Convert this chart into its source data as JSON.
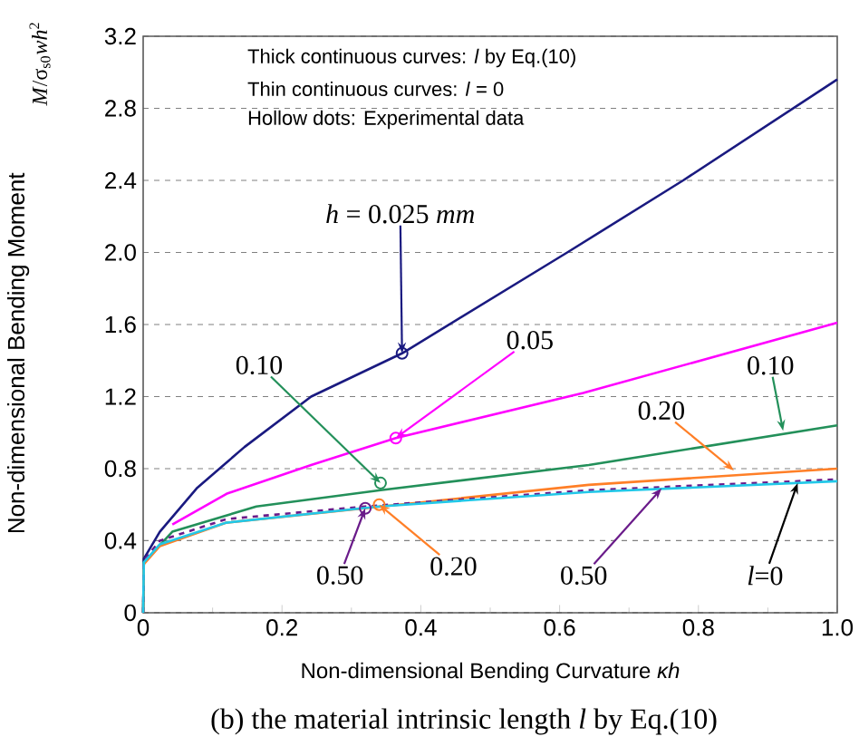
{
  "chart_data": {
    "type": "line",
    "title": "(b) the material intrinsic length *l* by Eq.(10)",
    "xlabel": "Non-dimensional Bending Curvature *κh*",
    "ylabel": "Non-dimensional Bending Moment",
    "xlim": [
      0,
      1
    ],
    "ylim": [
      0,
      3.2
    ],
    "xticks": [
      0,
      0.2,
      0.4,
      0.6,
      0.8,
      {
        "value": 1,
        "label": "1.0"
      }
    ],
    "yticks": [
      0,
      0.4,
      0.8,
      1.2,
      1.6,
      {
        "value": 2,
        "label": "2.0"
      },
      2.4,
      2.8,
      3.2
    ],
    "grid": "y",
    "marker": "none",
    "series": [
      {
        "color": "#1a1a80",
        "x": [
          0,
          0.001,
          0.024,
          0.077,
          0.146,
          0.242,
          0.373,
          0.611,
          0.778,
          1.0
        ],
        "values": [
          0,
          0.3,
          0.45,
          0.69,
          0.92,
          1.2,
          1.44,
          2.0,
          2.4,
          2.96
        ]
      },
      {
        "color": "#ff00ff",
        "x": [
          0.042,
          0.12,
          0.242,
          0.364,
          0.634,
          1.0
        ],
        "values": [
          0.49,
          0.66,
          0.82,
          0.97,
          1.22,
          1.61
        ]
      },
      {
        "color": "#23905a",
        "x": [
          0,
          0.001,
          0.042,
          0.163,
          0.342,
          0.642,
          1.0
        ],
        "values": [
          0,
          0.28,
          0.45,
          0.59,
          0.68,
          0.82,
          1.04
        ]
      },
      {
        "color": "#ff7f27",
        "x": [
          0,
          0.001,
          0.024,
          0.12,
          0.642,
          1.0
        ],
        "values": [
          0,
          0.27,
          0.37,
          0.5,
          0.71,
          0.8
        ]
      },
      {
        "color": "#6a1b8a",
        "line_style": "dashed",
        "x": [
          0,
          0.001,
          0.024,
          0.12,
          0.32,
          0.642,
          1.0
        ],
        "values": [
          0,
          0.29,
          0.4,
          0.52,
          0.59,
          0.68,
          0.74
        ]
      },
      {
        "color": "#22c8e8",
        "x": [
          0,
          0.001,
          0.024,
          0.12,
          0.34,
          0.642,
          1.0
        ],
        "values": [
          0,
          0.28,
          0.38,
          0.5,
          0.59,
          0.67,
          0.73
        ]
      },
      {
        "type": "scatter",
        "marker": "circle",
        "x": [
          0.373,
          0.364,
          0.342,
          0.34,
          0.32
        ],
        "values": [
          1.44,
          0.97,
          0.72,
          0.6,
          0.58
        ],
        "colors": [
          "#1a1a80",
          "#ff00ff",
          "#23905a",
          "#ff7f27",
          "#6a1b8a"
        ]
      }
    ],
    "annotations": [
      {
        "text": "*h* = 0.025 *mm*",
        "x": 0.373,
        "y": 1.44
      },
      {
        "text": "0.05",
        "x": 0.364,
        "y": 0.97
      },
      {
        "text": "0.10",
        "x": 0.342,
        "y": 0.72
      },
      {
        "text": "0.10",
        "x": 0.922,
        "y": 1.01
      },
      {
        "text": "0.20",
        "x": 0.851,
        "y": 0.79
      },
      {
        "text": "0.20",
        "x": 0.34,
        "y": 0.6
      },
      {
        "text": "0.50",
        "x": 0.32,
        "y": 0.58
      },
      {
        "text": "0.50",
        "x": 0.747,
        "y": 0.69
      },
      {
        "text": "*l*=0",
        "x": 0.943,
        "y": 0.72
      },
      "Thick continuous curves: *l* by Eq.(10)",
      "Thin continuous curves: *l* = 0",
      "Hollow dots: Experimental data",
      "*M*/σ$_{s0}$*wh*$^{2}$"
    ]
  }
}
